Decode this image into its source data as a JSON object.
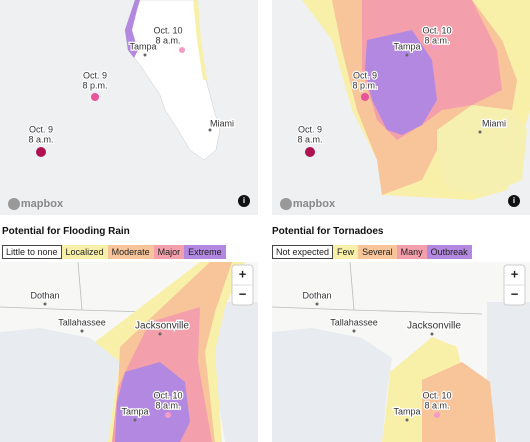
{
  "maps": [
    {
      "cities": [
        "Tampa",
        "Miami"
      ],
      "points": [
        {
          "date": "Oct. 10",
          "time": "8 a.m."
        },
        {
          "date": "Oct. 9",
          "time": "8 p.m."
        },
        {
          "date": "Oct. 9",
          "time": "8 a.m."
        }
      ],
      "attribution": "mapbox",
      "info": "i"
    },
    {
      "cities": [
        "Tampa",
        "Miami"
      ],
      "points": [
        {
          "date": "Oct. 10",
          "time": "8 a.m."
        },
        {
          "date": "Oct. 9",
          "time": "8 p.m."
        },
        {
          "date": "Oct. 9",
          "time": "8 a.m."
        }
      ],
      "attribution": "mapbox",
      "info": "i"
    },
    {
      "title": "Potential for Flooding Rain",
      "legend": [
        {
          "label": "Little to none",
          "color": "#ffffff"
        },
        {
          "label": "Localized",
          "color": "#f8f0a8"
        },
        {
          "label": "Moderate",
          "color": "#f8c49a"
        },
        {
          "label": "Major",
          "color": "#f4a0ac"
        },
        {
          "label": "Extreme",
          "color": "#b288e0"
        }
      ],
      "cities": [
        "Dothan",
        "Tallahassee",
        "Jacksonville",
        "Tampa"
      ],
      "points": [
        {
          "date": "Oct. 10",
          "time": "8 a.m."
        }
      ],
      "zoom": [
        "+",
        "−"
      ]
    },
    {
      "title": "Potential for Tornadoes",
      "legend": [
        {
          "label": "Not expected",
          "color": "#ffffff"
        },
        {
          "label": "Few",
          "color": "#f8f0a8"
        },
        {
          "label": "Several",
          "color": "#f8c49a"
        },
        {
          "label": "Many",
          "color": "#f4a0ac"
        },
        {
          "label": "Outbreak",
          "color": "#b288e0"
        }
      ],
      "cities": [
        "Dothan",
        "Tallahassee",
        "Jacksonville",
        "Tampa"
      ],
      "points": [
        {
          "date": "Oct. 10",
          "time": "8 a.m."
        }
      ],
      "zoom": [
        "+",
        "−"
      ]
    }
  ]
}
